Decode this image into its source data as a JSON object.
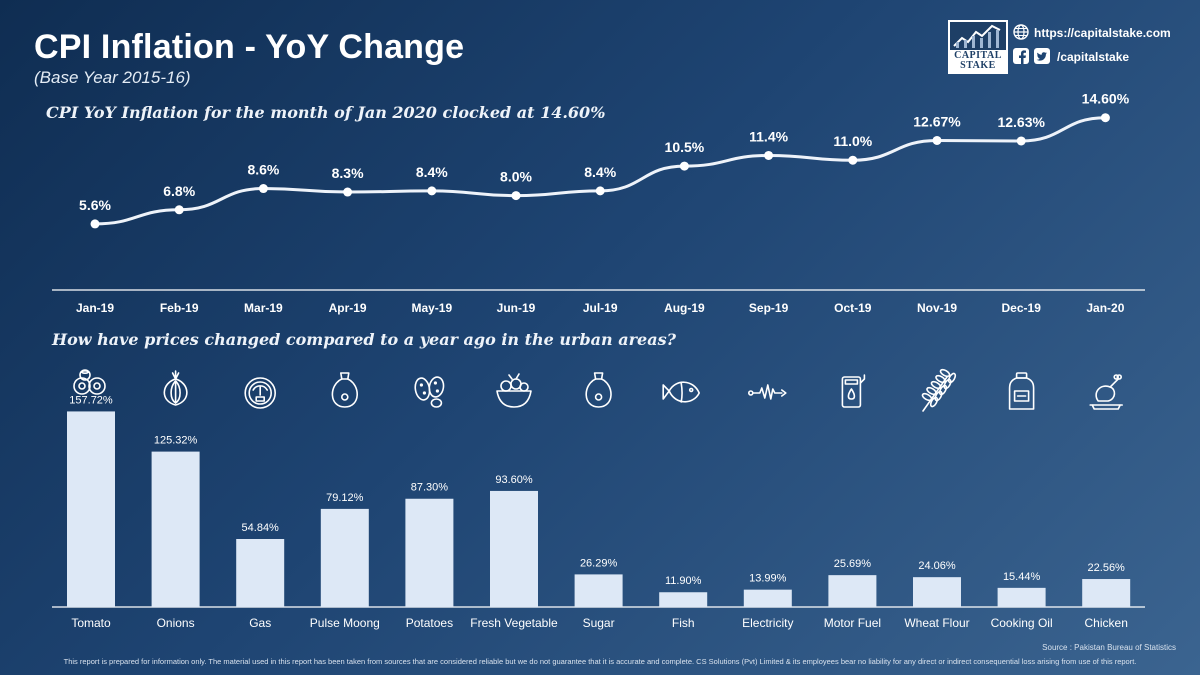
{
  "header": {
    "title": "CPI Inflation - YoY Change",
    "subtitle": "(Base Year 2015-16)",
    "logo_line1": "CAPITAL",
    "logo_line2": "STAKE",
    "website": "https://capitalstake.com",
    "social_handle": "/capitalstake"
  },
  "footer": {
    "source": "Source : Pakistan Bureau of Statistics",
    "disclaimer": "This report is prepared for information only. The material used in this report has been taken from sources that are considered reliable but we do not guarantee that it is accurate and complete. CS Solutions (Pvt) Limited & its employees bear no liability for any direct or indirect consequential loss arising from use of this report."
  },
  "colors": {
    "background_dark": "#0f2d52",
    "background_light": "#3b6490",
    "line": "#eef3fa",
    "bar": "#dde8f6"
  },
  "chart_data": [
    {
      "type": "line",
      "title": "CPI YoY Inflation for the month of Jan 2020 clocked at 14.60%",
      "categories": [
        "Jan-19",
        "Feb-19",
        "Mar-19",
        "Apr-19",
        "May-19",
        "Jun-19",
        "Jul-19",
        "Aug-19",
        "Sep-19",
        "Oct-19",
        "Nov-19",
        "Dec-19",
        "Jan-20"
      ],
      "values": [
        5.6,
        6.8,
        8.6,
        8.3,
        8.4,
        8.0,
        8.4,
        10.5,
        11.4,
        11.0,
        12.67,
        12.63,
        14.6
      ],
      "value_labels": [
        "5.6%",
        "6.8%",
        "8.6%",
        "8.3%",
        "8.4%",
        "8.0%",
        "8.4%",
        "10.5%",
        "11.4%",
        "11.0%",
        "12.67%",
        "12.63%",
        "14.60%"
      ],
      "ylim": [
        0,
        16
      ],
      "grid": false
    },
    {
      "type": "bar",
      "title": "How have prices changed compared to a year ago in the urban areas?",
      "categories": [
        "Tomato",
        "Onions",
        "Gas",
        "Pulse Moong",
        "Potatoes",
        "Fresh Vegetable",
        "Sugar",
        "Fish",
        "Electricity",
        "Motor Fuel",
        "Wheat Flour",
        "Cooking Oil",
        "Chicken"
      ],
      "values": [
        157.72,
        125.32,
        54.84,
        79.12,
        87.3,
        93.6,
        26.29,
        11.9,
        13.99,
        25.69,
        24.06,
        15.44,
        22.56
      ],
      "value_labels": [
        "157.72%",
        "125.32%",
        "54.84%",
        "79.12%",
        "87.30%",
        "93.60%",
        "26.29%",
        "11.90%",
        "13.99%",
        "25.69%",
        "24.06%",
        "15.44%",
        "22.56%"
      ],
      "icons": [
        "tomato-icon",
        "onion-icon",
        "gas-meter-icon",
        "pulse-sack-icon",
        "potatoes-icon",
        "vegetable-bowl-icon",
        "sugar-sack-icon",
        "fish-icon",
        "electricity-icon",
        "fuel-can-icon",
        "wheat-icon",
        "oil-bottle-icon",
        "chicken-icon"
      ],
      "ylim": [
        0,
        160
      ],
      "grid": false
    }
  ]
}
